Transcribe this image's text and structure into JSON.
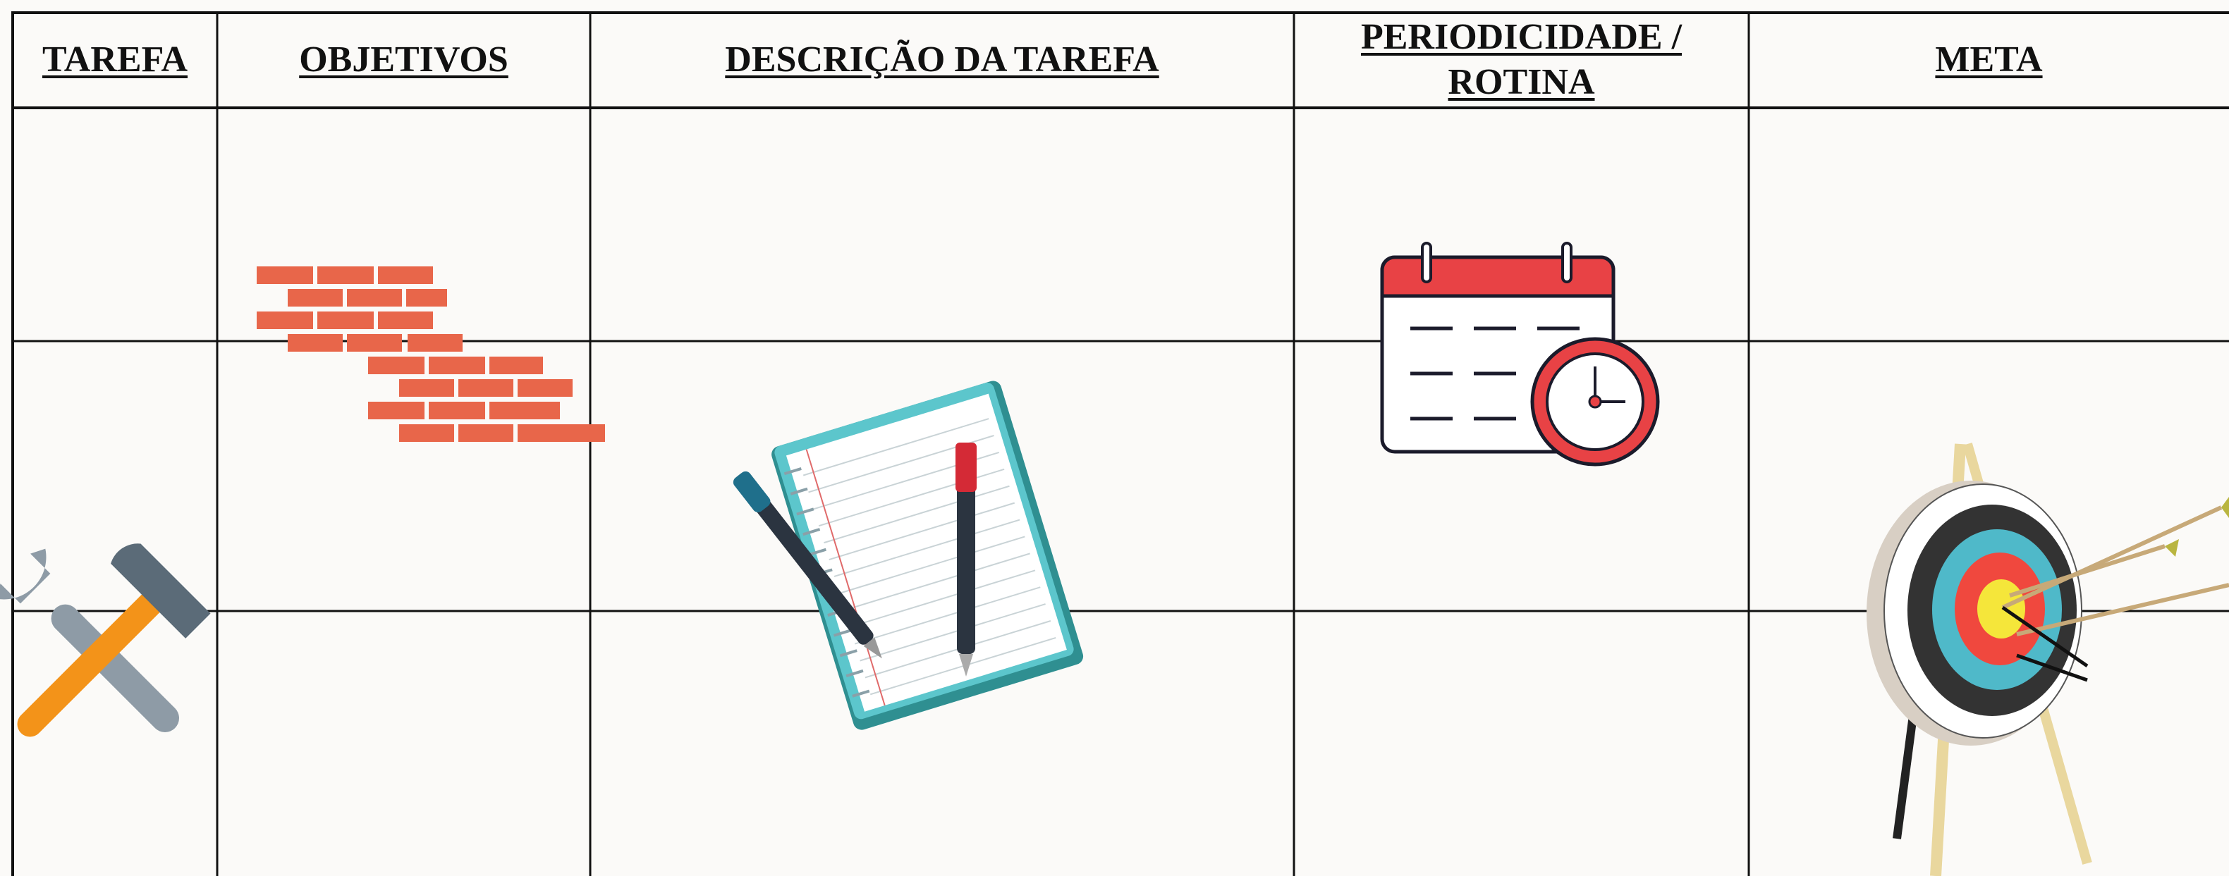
{
  "table": {
    "headers": [
      "TAREFA",
      "OBJETIVOS",
      "DESCRIÇÃO DA TAREFA",
      "PERIODICIDADE / ROTINA",
      "META"
    ]
  }
}
